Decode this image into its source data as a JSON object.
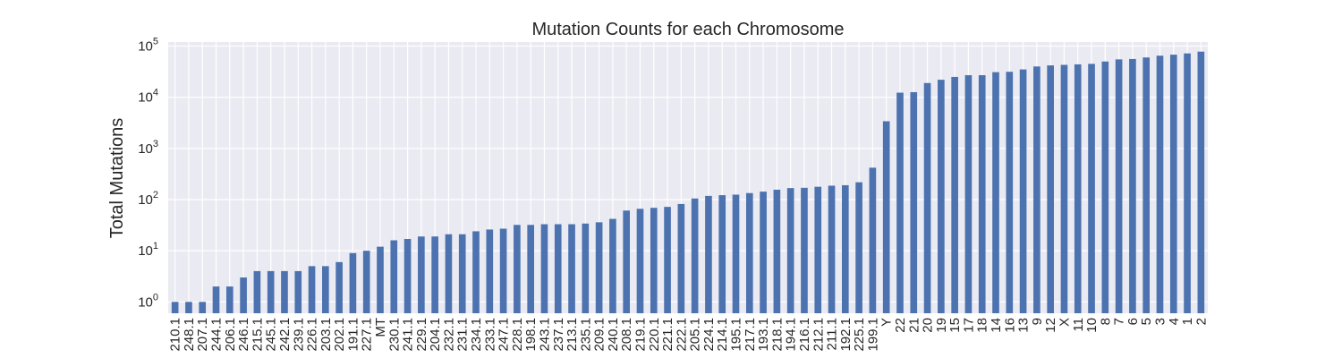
{
  "chart_data": {
    "type": "bar",
    "title": "Mutation Counts for each Chromosome",
    "xlabel": "",
    "ylabel": "Total Mutations",
    "yscale": "log",
    "ylim": [
      0.6,
      120000
    ],
    "yticks": [
      {
        "base": "10",
        "exp": "0",
        "value": 1
      },
      {
        "base": "10",
        "exp": "1",
        "value": 10
      },
      {
        "base": "10",
        "exp": "2",
        "value": 100
      },
      {
        "base": "10",
        "exp": "3",
        "value": 1000
      },
      {
        "base": "10",
        "exp": "4",
        "value": 10000
      },
      {
        "base": "10",
        "exp": "5",
        "value": 100000
      }
    ],
    "grid": true,
    "colors": {
      "bar": "#4c72b0",
      "plot_bg": "#eaeaf2",
      "grid": "#ffffff",
      "text": "#262626"
    },
    "categories": [
      "210.1",
      "248.1",
      "207.1",
      "244.1",
      "206.1",
      "246.1",
      "215.1",
      "245.1",
      "242.1",
      "239.1",
      "226.1",
      "203.1",
      "202.1",
      "191.1",
      "227.1",
      "MT",
      "230.1",
      "241.1",
      "229.1",
      "204.1",
      "232.1",
      "231.1",
      "234.1",
      "233.1",
      "247.1",
      "228.1",
      "198.1",
      "243.1",
      "237.1",
      "213.1",
      "235.1",
      "209.1",
      "240.1",
      "208.1",
      "219.1",
      "220.1",
      "221.1",
      "222.1",
      "205.1",
      "224.1",
      "214.1",
      "195.1",
      "217.1",
      "193.1",
      "218.1",
      "194.1",
      "216.1",
      "212.1",
      "211.1",
      "192.1",
      "225.1",
      "199.1",
      "Y",
      "22",
      "21",
      "20",
      "19",
      "15",
      "17",
      "18",
      "14",
      "16",
      "13",
      "9",
      "12",
      "X",
      "11",
      "10",
      "8",
      "7",
      "6",
      "5",
      "3",
      "4",
      "1",
      "2"
    ],
    "values": [
      1,
      1,
      1,
      2,
      2,
      3,
      4,
      4,
      4,
      4,
      5,
      5,
      6,
      9,
      10,
      12,
      16,
      17,
      19,
      19,
      21,
      21,
      24,
      26,
      27,
      32,
      32,
      33,
      33,
      33,
      34,
      36,
      42,
      61,
      66,
      69,
      72,
      82,
      105,
      118,
      122,
      125,
      134,
      143,
      156,
      168,
      170,
      178,
      187,
      191,
      218,
      420,
      3400,
      12300,
      12600,
      19000,
      22000,
      25000,
      27000,
      27000,
      31000,
      31500,
      35000,
      40000,
      42000,
      43000,
      44000,
      45000,
      50000,
      55000,
      56000,
      60000,
      65000,
      68000,
      72000,
      78000
    ]
  }
}
